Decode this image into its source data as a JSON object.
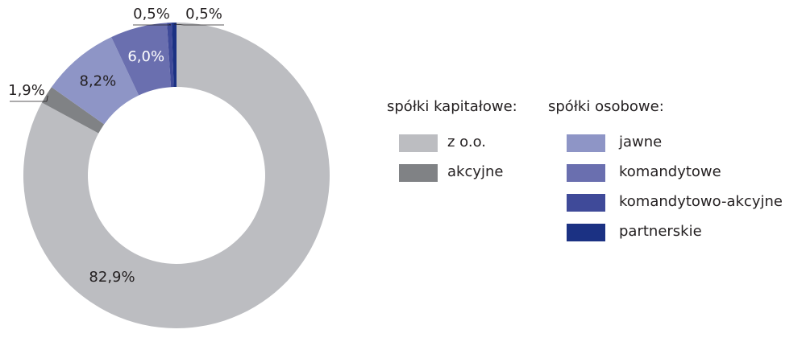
{
  "chart_data": {
    "type": "donut",
    "groups": [
      {
        "title": "spółki kapitałowe:",
        "categories": [
          "z o.o.",
          "akcyjne"
        ],
        "values": [
          82.9,
          1.9
        ],
        "value_labels": [
          "82,9%",
          "1,9%"
        ],
        "colors": [
          "#bcbdc1",
          "#808285"
        ]
      },
      {
        "title": "spółki osobowe:",
        "categories": [
          "jawne",
          "komandytowe",
          "komandytowo-akcyjne",
          "partnerskie"
        ],
        "values": [
          8.2,
          6.0,
          0.5,
          0.5
        ],
        "value_labels": [
          "8,2%",
          "6,0%",
          "0,5%",
          "0,5%"
        ],
        "colors": [
          "#8e95c6",
          "#6a6faf",
          "#3f4a99",
          "#1b3183"
        ]
      }
    ]
  }
}
